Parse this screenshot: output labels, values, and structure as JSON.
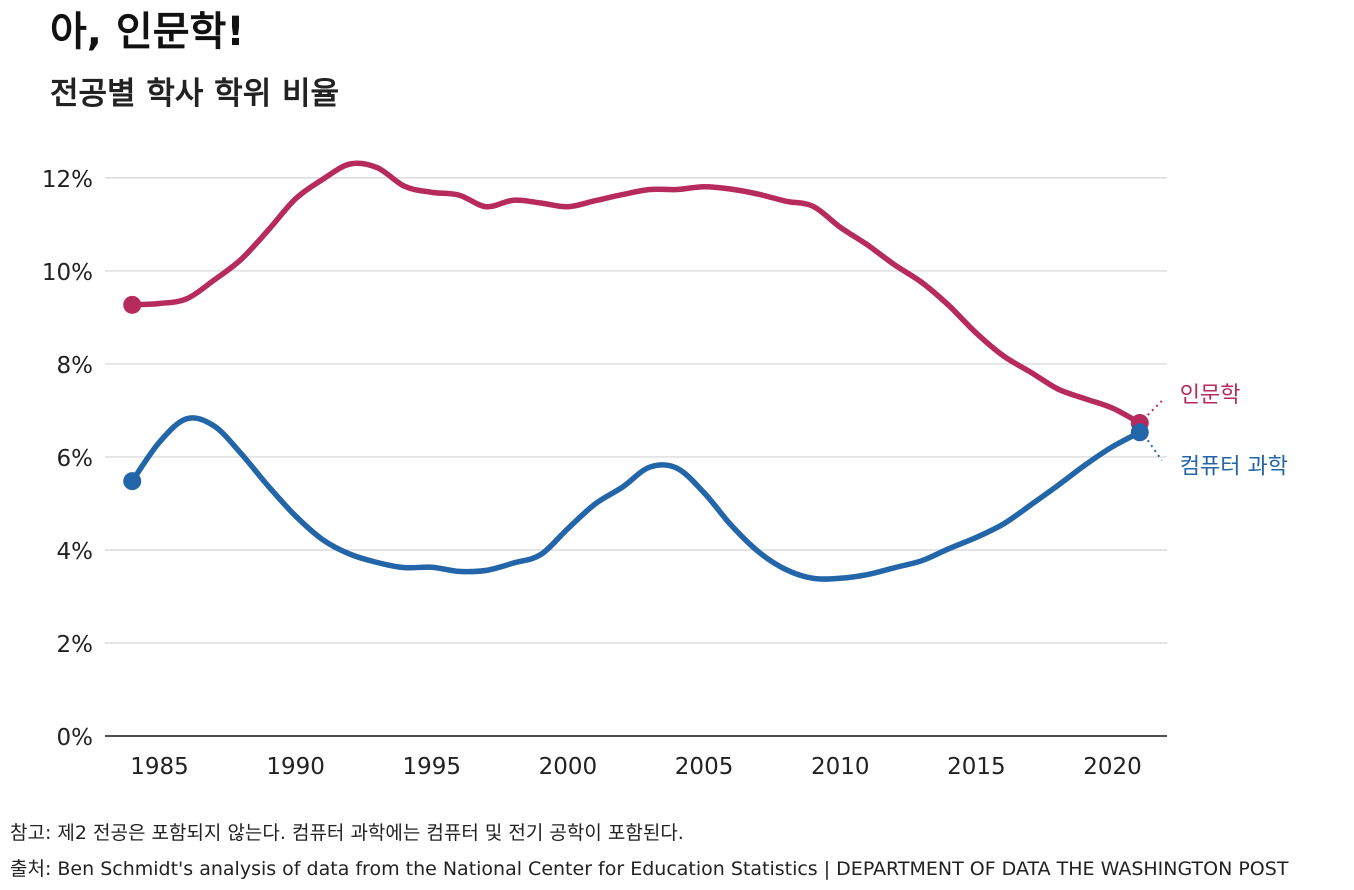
{
  "title": "아, 인문학!",
  "subtitle": "전공별 학사 학위 비율",
  "note": "참고: 제2 전공은 포함되지 않는다. 컴퓨터 과학에는 컴퓨터 및 전기 공학이 포함된다.",
  "source": "출처: Ben Schmidt's analysis of data from the National Center for Education Statistics | DEPARTMENT OF DATA THE WASHINGTON POST",
  "chart_data": {
    "type": "line",
    "title": "아, 인문학!",
    "subtitle": "전공별 학사 학위 비율",
    "xlabel": "",
    "ylabel": "",
    "xlim": [
      1983,
      2022
    ],
    "ylim": [
      0,
      12.6
    ],
    "x_ticks": [
      1985,
      1990,
      1995,
      2000,
      2005,
      2010,
      2015,
      2020
    ],
    "x_tick_labels": [
      "1985",
      "1990",
      "1995",
      "2000",
      "2005",
      "2010",
      "2015",
      "2020"
    ],
    "y_ticks": [
      0,
      2,
      4,
      6,
      8,
      10,
      12
    ],
    "y_tick_labels": [
      "0%",
      "2%",
      "4%",
      "6%",
      "8%",
      "10%",
      "12%"
    ],
    "grid": true,
    "x": [
      1984,
      1985,
      1986,
      1987,
      1988,
      1989,
      1990,
      1991,
      1992,
      1993,
      1994,
      1995,
      1996,
      1997,
      1998,
      1999,
      2000,
      2001,
      2002,
      2003,
      2004,
      2005,
      2006,
      2007,
      2008,
      2009,
      2010,
      2011,
      2012,
      2013,
      2014,
      2015,
      2016,
      2017,
      2018,
      2019,
      2020,
      2021
    ],
    "series": [
      {
        "name": "인문학",
        "color": "#b72a5d",
        "values": [
          9.27,
          9.3,
          9.4,
          9.8,
          10.25,
          10.88,
          11.55,
          11.97,
          12.3,
          12.22,
          11.82,
          11.69,
          11.63,
          11.38,
          11.52,
          11.46,
          11.38,
          11.51,
          11.64,
          11.75,
          11.75,
          11.81,
          11.76,
          11.65,
          11.5,
          11.39,
          10.94,
          10.56,
          10.13,
          9.75,
          9.25,
          8.66,
          8.17,
          7.82,
          7.46,
          7.25,
          7.05,
          6.73
        ]
      },
      {
        "name": "컴퓨터 과학",
        "color": "#2265a8",
        "values": [
          5.48,
          6.32,
          6.82,
          6.67,
          6.07,
          5.37,
          4.73,
          4.22,
          3.91,
          3.73,
          3.62,
          3.63,
          3.54,
          3.56,
          3.72,
          3.9,
          4.46,
          4.99,
          5.35,
          5.78,
          5.76,
          5.23,
          4.53,
          3.96,
          3.58,
          3.39,
          3.39,
          3.47,
          3.62,
          3.77,
          4.03,
          4.27,
          4.56,
          4.97,
          5.39,
          5.83,
          6.22,
          6.53
        ]
      }
    ]
  }
}
